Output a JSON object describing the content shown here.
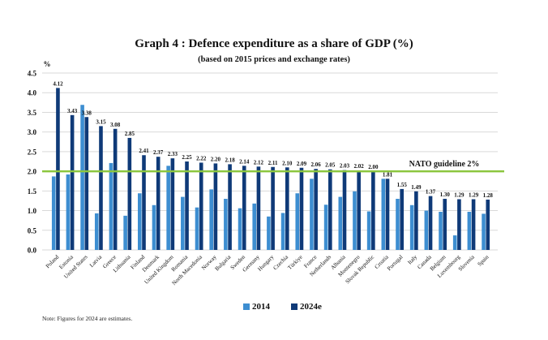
{
  "colors": {
    "series_2014": "#3d8ed1",
    "series_2024e": "#0f3a78",
    "guideline": "#8cc63f",
    "grid": "#d9d9d9",
    "text": "#111111"
  },
  "note": "Note: Figures for 2024 are estimates.",
  "chart_data": {
    "type": "bar",
    "title": "Graph 4 : Defence expenditure as a share of GDP (%)",
    "subtitle": "(based on 2015 prices and exchange rates)",
    "ylabel": "%",
    "xlabel": "",
    "ylim": [
      0,
      4.5
    ],
    "yticks": [
      "0.0",
      "0.5",
      "1.0",
      "1.5",
      "2.0",
      "2.5",
      "3.0",
      "3.5",
      "4.0",
      "4.5"
    ],
    "grid": true,
    "legend_position": "bottom",
    "categories": [
      "Poland",
      "Estonia",
      "United States",
      "Latvia",
      "Greece",
      "Lithuania",
      "Finland",
      "Denmark",
      "United Kingdom",
      "Romania",
      "North Macedonia",
      "Norway",
      "Bulgaria",
      "Sweden",
      "Germany",
      "Hungary",
      "Czechia",
      "Türkiye",
      "France",
      "Netherlands",
      "Albania",
      "Montenegro",
      "Slovak Republic",
      "Croatia",
      "Portugal",
      "Italy",
      "Canada",
      "Belgium",
      "Luxembourg",
      "Slovenia",
      "Spain"
    ],
    "series": [
      {
        "name": "2014",
        "values": [
          1.87,
          1.92,
          3.69,
          0.93,
          2.21,
          0.87,
          1.44,
          1.14,
          2.14,
          1.35,
          1.08,
          1.54,
          1.3,
          1.06,
          1.18,
          0.85,
          0.94,
          1.44,
          1.81,
          1.15,
          1.35,
          1.49,
          0.98,
          1.81,
          1.3,
          1.14,
          1.0,
          0.97,
          0.37,
          0.97,
          0.92
        ],
        "labeled": false
      },
      {
        "name": "2024e",
        "values": [
          4.12,
          3.43,
          3.38,
          3.15,
          3.08,
          2.85,
          2.41,
          2.37,
          2.33,
          2.25,
          2.22,
          2.2,
          2.18,
          2.14,
          2.12,
          2.11,
          2.1,
          2.09,
          2.06,
          2.05,
          2.03,
          2.02,
          2.0,
          1.81,
          1.55,
          1.49,
          1.37,
          1.3,
          1.29,
          1.29,
          1.28
        ],
        "labels": [
          "4.12",
          "3.43",
          "3.38",
          "3.15",
          "3.08",
          "2.85",
          "2.41",
          "2.37",
          "2.33",
          "2.25",
          "2.22",
          "2.20",
          "2.18",
          "2.14",
          "2.12",
          "2.11",
          "2.10",
          "2.09",
          "2.06",
          "2.05",
          "2.03",
          "2.02",
          "2.00",
          "1.81",
          "1.55",
          "1.49",
          "1.37",
          "1.30",
          "1.29",
          "1.29",
          "1.28"
        ],
        "labeled": true
      }
    ],
    "reference_line": {
      "value": 2.0,
      "label": "NATO guideline 2%"
    },
    "legend": [
      "2014",
      "2024e"
    ]
  }
}
